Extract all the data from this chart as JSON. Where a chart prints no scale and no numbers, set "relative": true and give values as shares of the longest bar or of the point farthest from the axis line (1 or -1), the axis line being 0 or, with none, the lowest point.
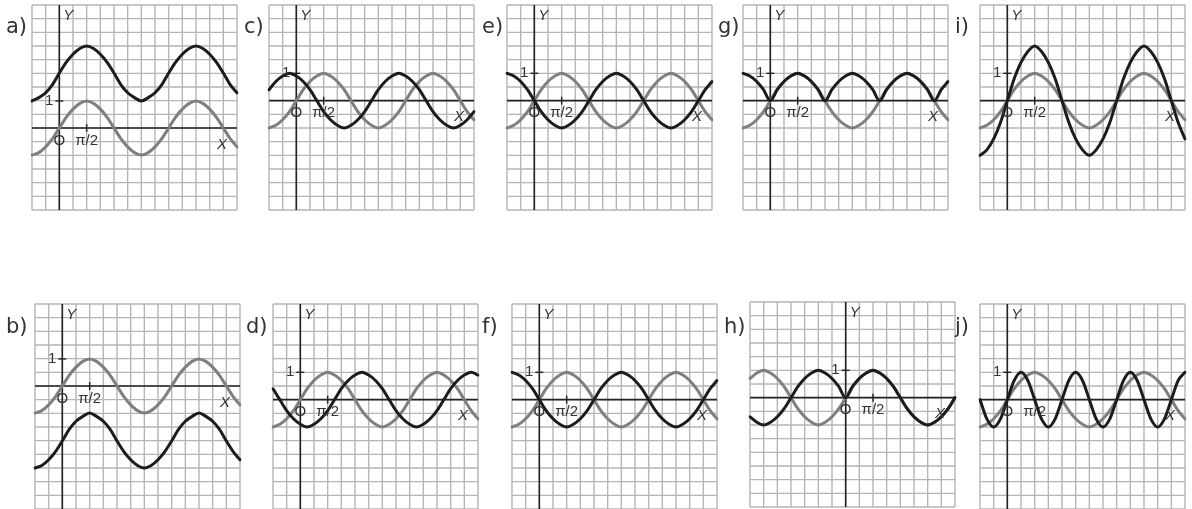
{
  "chart_data": [
    {
      "type": "line",
      "title": "a)",
      "xlabel": "X",
      "ylabel": "Y",
      "grid": true,
      "marker": "none",
      "relative": true,
      "categories": [
        null,
        null,
        null,
        null,
        "O",
        null,
        null,
        null,
        "π/2",
        null,
        null,
        null,
        null,
        null,
        null,
        null,
        null,
        null,
        null,
        null,
        null,
        null,
        null,
        null,
        null,
        null,
        null,
        null,
        null,
        null,
        null
      ],
      "ref_lines": [
        {
          "axis": "x",
          "value": "O",
          "color": "#222222"
        }
      ],
      "annotations": [
        {
          "text": "1",
          "x": "O",
          "y": 0.33
        }
      ],
      "series": [
        {
          "color": "#7f7f7f",
          "values": [
            -0.33,
            -0.3,
            -0.23,
            -0.13,
            0,
            0.13,
            0.23,
            0.3,
            0.33,
            0.3,
            0.23,
            0.13,
            0,
            -0.13,
            -0.23,
            -0.3,
            -0.33,
            -0.3,
            -0.23,
            -0.13,
            0,
            0.13,
            0.23,
            0.3,
            0.33,
            0.3,
            0.23,
            0.13,
            0,
            -0.13,
            -0.23
          ]
        },
        {
          "color": "#1c1c1c",
          "values": [
            0.33,
            0.37,
            0.43,
            0.53,
            0.67,
            0.8,
            0.9,
            0.97,
            1,
            0.97,
            0.9,
            0.8,
            0.67,
            0.53,
            0.43,
            0.37,
            0.33,
            0.37,
            0.43,
            0.53,
            0.67,
            0.8,
            0.9,
            0.97,
            1,
            0.97,
            0.9,
            0.8,
            0.67,
            0.53,
            0.43
          ]
        }
      ]
    },
    {
      "type": "line",
      "title": "c)",
      "xlabel": "X",
      "ylabel": "Y",
      "grid": true,
      "marker": "none",
      "relative": true,
      "categories": [
        null,
        null,
        null,
        null,
        "O",
        null,
        null,
        null,
        "π/2",
        null,
        null,
        null,
        null,
        null,
        null,
        null,
        null,
        null,
        null,
        null,
        null,
        null,
        null,
        null,
        null,
        null,
        null,
        null,
        null,
        null,
        null
      ],
      "ref_lines": [
        {
          "axis": "x",
          "value": "O",
          "color": "#222222"
        }
      ],
      "annotations": [
        {
          "text": "1",
          "x": "O",
          "y": 1
        }
      ],
      "series": [
        {
          "color": "#7f7f7f",
          "values": [
            -1,
            -0.9,
            -0.7,
            -0.4,
            0,
            0.4,
            0.7,
            0.9,
            1,
            0.9,
            0.7,
            0.4,
            0,
            -0.4,
            -0.7,
            -0.9,
            -1,
            -0.9,
            -0.7,
            -0.4,
            0,
            0.4,
            0.7,
            0.9,
            1,
            0.9,
            0.7,
            0.4,
            0,
            -0.4,
            -0.7
          ]
        },
        {
          "color": "#1c1c1c",
          "values": [
            0.4,
            0.7,
            0.9,
            1,
            0.9,
            0.7,
            0.4,
            0,
            -0.4,
            -0.7,
            -0.9,
            -1,
            -0.9,
            -0.7,
            -0.4,
            0,
            0.4,
            0.7,
            0.9,
            1,
            0.9,
            0.7,
            0.4,
            0,
            -0.4,
            -0.7,
            -0.9,
            -1,
            -0.9,
            -0.7,
            -0.4
          ]
        }
      ]
    },
    {
      "type": "line",
      "title": "e)",
      "xlabel": "X",
      "ylabel": "Y",
      "grid": true,
      "marker": "none",
      "relative": true,
      "categories": [
        null,
        null,
        null,
        null,
        "O",
        null,
        null,
        null,
        "π/2",
        null,
        null,
        null,
        null,
        null,
        null,
        null,
        null,
        null,
        null,
        null,
        null,
        null,
        null,
        null,
        null,
        null,
        null,
        null,
        null,
        null,
        null
      ],
      "ref_lines": [
        {
          "axis": "x",
          "value": "O",
          "color": "#222222"
        }
      ],
      "annotations": [
        {
          "text": "1",
          "x": "O",
          "y": 1
        }
      ],
      "series": [
        {
          "color": "#7f7f7f",
          "values": [
            -1,
            -0.9,
            -0.7,
            -0.4,
            0,
            0.4,
            0.7,
            0.9,
            1,
            0.9,
            0.7,
            0.4,
            0,
            -0.4,
            -0.7,
            -0.9,
            -1,
            -0.9,
            -0.7,
            -0.4,
            0,
            0.4,
            0.7,
            0.9,
            1,
            0.9,
            0.7,
            0.4,
            0,
            -0.4,
            -0.7
          ]
        },
        {
          "color": "#1c1c1c",
          "values": [
            1,
            0.9,
            0.7,
            0.4,
            0,
            -0.4,
            -0.7,
            -0.9,
            -1,
            -0.9,
            -0.7,
            -0.4,
            0,
            0.4,
            0.7,
            0.9,
            1,
            0.9,
            0.7,
            0.4,
            0,
            -0.4,
            -0.7,
            -0.9,
            -1,
            -0.9,
            -0.7,
            -0.4,
            0,
            0.4,
            0.7
          ]
        }
      ]
    },
    {
      "type": "line",
      "title": "g)",
      "xlabel": "X",
      "ylabel": "Y",
      "grid": true,
      "marker": "none",
      "relative": true,
      "categories": [
        null,
        null,
        null,
        null,
        "O",
        null,
        null,
        null,
        "π/2",
        null,
        null,
        null,
        null,
        null,
        null,
        null,
        null,
        null,
        null,
        null,
        null,
        null,
        null,
        null,
        null,
        null,
        null,
        null,
        null,
        null,
        null
      ],
      "ref_lines": [
        {
          "axis": "x",
          "value": "O",
          "color": "#222222"
        }
      ],
      "annotations": [
        {
          "text": "1",
          "x": "O",
          "y": 1
        }
      ],
      "series": [
        {
          "color": "#7f7f7f",
          "values": [
            -1,
            -0.9,
            -0.7,
            -0.4,
            0,
            0.4,
            0.7,
            0.9,
            1,
            0.9,
            0.7,
            0.4,
            0,
            -0.4,
            -0.7,
            -0.9,
            -1,
            -0.9,
            -0.7,
            -0.4,
            0,
            0.4,
            0.7,
            0.9,
            1,
            0.9,
            0.7,
            0.4,
            0,
            -0.4,
            -0.7
          ]
        },
        {
          "color": "#1c1c1c",
          "values": [
            1,
            0.9,
            0.7,
            0.4,
            0,
            0.4,
            0.7,
            0.9,
            1,
            0.9,
            0.7,
            0.4,
            0,
            0.4,
            0.7,
            0.9,
            1,
            0.9,
            0.7,
            0.4,
            0,
            0.4,
            0.7,
            0.9,
            1,
            0.9,
            0.7,
            0.4,
            0,
            0.4,
            0.7
          ]
        }
      ]
    },
    {
      "type": "line",
      "title": "i)",
      "xlabel": "X",
      "ylabel": "Y",
      "grid": true,
      "marker": "none",
      "relative": true,
      "categories": [
        null,
        null,
        null,
        null,
        "O",
        null,
        null,
        null,
        "π/2",
        null,
        null,
        null,
        null,
        null,
        null,
        null,
        null,
        null,
        null,
        null,
        null,
        null,
        null,
        null,
        null,
        null,
        null,
        null,
        null,
        null,
        null
      ],
      "ref_lines": [
        {
          "axis": "x",
          "value": "O",
          "color": "#222222"
        }
      ],
      "annotations": [
        {
          "text": "1",
          "x": "O",
          "y": 0.5
        }
      ],
      "series": [
        {
          "color": "#7f7f7f",
          "values": [
            -0.5,
            -0.45,
            -0.35,
            -0.2,
            0,
            0.2,
            0.35,
            0.45,
            0.5,
            0.45,
            0.35,
            0.2,
            0,
            -0.2,
            -0.35,
            -0.45,
            -0.5,
            -0.45,
            -0.35,
            -0.2,
            0,
            0.2,
            0.35,
            0.45,
            0.5,
            0.45,
            0.35,
            0.2,
            0,
            -0.2,
            -0.35
          ]
        },
        {
          "color": "#1c1c1c",
          "values": [
            -1,
            -0.9,
            -0.7,
            -0.4,
            0,
            0.4,
            0.7,
            0.9,
            1,
            0.9,
            0.7,
            0.4,
            0,
            -0.4,
            -0.7,
            -0.9,
            -1,
            -0.9,
            -0.7,
            -0.4,
            0,
            0.4,
            0.7,
            0.9,
            1,
            0.9,
            0.7,
            0.4,
            0,
            -0.4,
            -0.7
          ]
        }
      ]
    },
    {
      "type": "line",
      "title": "b)",
      "xlabel": "X",
      "ylabel": "Y",
      "grid": true,
      "marker": "none",
      "relative": true,
      "categories": [
        null,
        null,
        null,
        null,
        "O",
        null,
        null,
        null,
        "π/2",
        null,
        null,
        null,
        null,
        null,
        null,
        null,
        null,
        null,
        null,
        null,
        null,
        null,
        null,
        null,
        null,
        null,
        null,
        null,
        null,
        null,
        null
      ],
      "ref_lines": [
        {
          "axis": "x",
          "value": "O",
          "color": "#222222"
        }
      ],
      "annotations": [
        {
          "text": "1",
          "x": "O",
          "y": 0.33
        }
      ],
      "series": [
        {
          "color": "#7f7f7f",
          "values": [
            -0.33,
            -0.3,
            -0.23,
            -0.13,
            0,
            0.13,
            0.23,
            0.3,
            0.33,
            0.3,
            0.23,
            0.13,
            0,
            -0.13,
            -0.23,
            -0.3,
            -0.33,
            -0.3,
            -0.23,
            -0.13,
            0,
            0.13,
            0.23,
            0.3,
            0.33,
            0.3,
            0.23,
            0.13,
            0,
            -0.13,
            -0.23
          ]
        },
        {
          "color": "#1c1c1c",
          "values": [
            -1,
            -0.97,
            -0.9,
            -0.8,
            -0.67,
            -0.53,
            -0.43,
            -0.37,
            -0.33,
            -0.37,
            -0.43,
            -0.53,
            -0.67,
            -0.8,
            -0.9,
            -0.97,
            -1,
            -0.97,
            -0.9,
            -0.8,
            -0.67,
            -0.53,
            -0.43,
            -0.37,
            -0.33,
            -0.37,
            -0.43,
            -0.53,
            -0.67,
            -0.8,
            -0.9
          ]
        }
      ]
    },
    {
      "type": "line",
      "title": "d)",
      "xlabel": "X",
      "ylabel": "Y",
      "grid": true,
      "marker": "none",
      "relative": true,
      "categories": [
        null,
        null,
        null,
        null,
        "O",
        null,
        null,
        null,
        "π/2",
        null,
        null,
        null,
        null,
        null,
        null,
        null,
        null,
        null,
        null,
        null,
        null,
        null,
        null,
        null,
        null,
        null,
        null,
        null,
        null,
        null,
        null
      ],
      "ref_lines": [
        {
          "axis": "x",
          "value": "O",
          "color": "#222222"
        }
      ],
      "annotations": [
        {
          "text": "1",
          "x": "O",
          "y": 1
        }
      ],
      "series": [
        {
          "color": "#7f7f7f",
          "values": [
            -1,
            -0.9,
            -0.7,
            -0.4,
            0,
            0.4,
            0.7,
            0.9,
            1,
            0.9,
            0.7,
            0.4,
            0,
            -0.4,
            -0.7,
            -0.9,
            -1,
            -0.9,
            -0.7,
            -0.4,
            0,
            0.4,
            0.7,
            0.9,
            1,
            0.9,
            0.7,
            0.4,
            0,
            -0.4,
            -0.7
          ]
        },
        {
          "color": "#1c1c1c",
          "values": [
            0.4,
            0,
            -0.4,
            -0.7,
            -0.9,
            -1,
            -0.9,
            -0.7,
            -0.4,
            0,
            0.4,
            0.7,
            0.9,
            1,
            0.9,
            0.7,
            0.4,
            0,
            -0.4,
            -0.7,
            -0.9,
            -1,
            -0.9,
            -0.7,
            -0.4,
            0,
            0.4,
            0.7,
            0.9,
            1,
            0.9
          ]
        }
      ]
    },
    {
      "type": "line",
      "title": "f)",
      "xlabel": "X",
      "ylabel": "Y",
      "grid": true,
      "marker": "none",
      "relative": true,
      "categories": [
        null,
        null,
        null,
        null,
        "O",
        null,
        null,
        null,
        "π/2",
        null,
        null,
        null,
        null,
        null,
        null,
        null,
        null,
        null,
        null,
        null,
        null,
        null,
        null,
        null,
        null,
        null,
        null,
        null,
        null,
        null,
        null
      ],
      "ref_lines": [
        {
          "axis": "x",
          "value": "O",
          "color": "#222222"
        }
      ],
      "annotations": [
        {
          "text": "1",
          "x": "O",
          "y": 1
        }
      ],
      "series": [
        {
          "color": "#7f7f7f",
          "values": [
            -1,
            -0.9,
            -0.7,
            -0.4,
            0,
            0.4,
            0.7,
            0.9,
            1,
            0.9,
            0.7,
            0.4,
            0,
            -0.4,
            -0.7,
            -0.9,
            -1,
            -0.9,
            -0.7,
            -0.4,
            0,
            0.4,
            0.7,
            0.9,
            1,
            0.9,
            0.7,
            0.4,
            0,
            -0.4,
            -0.7
          ]
        },
        {
          "color": "#1c1c1c",
          "values": [
            1,
            0.9,
            0.7,
            0.4,
            0,
            -0.4,
            -0.7,
            -0.9,
            -1,
            -0.9,
            -0.7,
            -0.4,
            0,
            0.4,
            0.7,
            0.9,
            1,
            0.9,
            0.7,
            0.4,
            0,
            -0.4,
            -0.7,
            -0.9,
            -1,
            -0.9,
            -0.7,
            -0.4,
            0,
            0.4,
            0.7
          ]
        }
      ]
    },
    {
      "type": "line",
      "title": "h)",
      "xlabel": "X",
      "ylabel": "Y",
      "grid": true,
      "marker": "none",
      "relative": true,
      "categories": [
        null,
        null,
        null,
        null,
        null,
        null,
        null,
        null,
        null,
        null,
        null,
        null,
        null,
        null,
        "O",
        null,
        null,
        null,
        "π/2",
        null,
        null,
        null,
        null,
        null,
        null,
        null,
        null,
        null,
        null,
        null,
        null
      ],
      "ref_lines": [
        {
          "axis": "x",
          "value": "O",
          "color": "#222222"
        }
      ],
      "annotations": [
        {
          "text": "1",
          "x": "O",
          "y": 1
        }
      ],
      "series": [
        {
          "color": "#7f7f7f",
          "values": [
            0.7,
            0.9,
            1,
            0.9,
            0.7,
            0.4,
            0,
            -0.4,
            -0.7,
            -0.9,
            -1,
            -0.9,
            -0.7,
            -0.4,
            0,
            0.4,
            0.7,
            0.9,
            1,
            0.9,
            0.7,
            0.4,
            0,
            -0.4,
            -0.7,
            -0.9,
            -1,
            -0.9,
            -0.7,
            -0.4,
            0
          ]
        },
        {
          "color": "#1c1c1c",
          "values": [
            -0.7,
            -0.9,
            -1,
            -0.9,
            -0.7,
            -0.4,
            0,
            0.4,
            0.7,
            0.9,
            1,
            0.9,
            0.7,
            0.4,
            0,
            0.4,
            0.7,
            0.9,
            1,
            0.9,
            0.7,
            0.4,
            0,
            -0.4,
            -0.7,
            -0.9,
            -1,
            -0.9,
            -0.7,
            -0.4,
            0
          ]
        }
      ]
    },
    {
      "type": "line",
      "title": "j)",
      "xlabel": "X",
      "ylabel": "Y",
      "grid": true,
      "marker": "none",
      "relative": true,
      "categories": [
        null,
        null,
        null,
        null,
        "O",
        null,
        null,
        null,
        "π/2",
        null,
        null,
        null,
        null,
        null,
        null,
        null,
        null,
        null,
        null,
        null,
        null,
        null,
        null,
        null,
        null,
        null,
        null,
        null,
        null,
        null,
        null
      ],
      "ref_lines": [
        {
          "axis": "x",
          "value": "O",
          "color": "#222222"
        }
      ],
      "annotations": [
        {
          "text": "1",
          "x": "O",
          "y": 1
        }
      ],
      "series": [
        {
          "color": "#7f7f7f",
          "values": [
            -1,
            -0.9,
            -0.7,
            -0.4,
            0,
            0.4,
            0.7,
            0.9,
            1,
            0.9,
            0.7,
            0.4,
            0,
            -0.4,
            -0.7,
            -0.9,
            -1,
            -0.9,
            -0.7,
            -0.4,
            0,
            0.4,
            0.7,
            0.9,
            1,
            0.9,
            0.7,
            0.4,
            0,
            -0.4,
            -0.7
          ]
        },
        {
          "color": "#1c1c1c",
          "values": [
            0,
            -0.7,
            -1,
            -0.7,
            0,
            0.7,
            1,
            0.7,
            0,
            -0.7,
            -1,
            -0.7,
            0,
            0.7,
            1,
            0.7,
            0,
            -0.7,
            -1,
            -0.7,
            0,
            0.7,
            1,
            0.7,
            0,
            -0.7,
            -1,
            -0.7,
            0,
            0.7,
            1
          ]
        }
      ]
    }
  ]
}
